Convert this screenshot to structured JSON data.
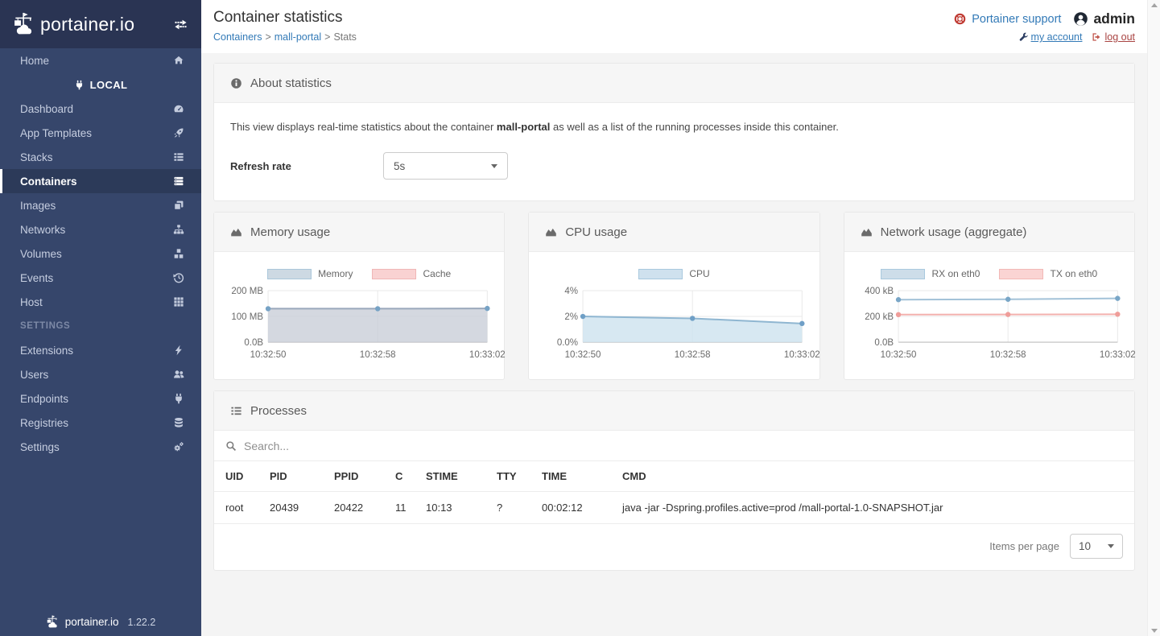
{
  "colors": {
    "sidebar_bg": "#36466b",
    "sidebar_header_bg": "#2a3453",
    "active_item_bg": "#2c3a59",
    "link_blue": "#337ab7",
    "danger_red": "#a94442",
    "page_bg": "#f4f4f4",
    "widget_header_bg": "#f6f6f6"
  },
  "sidebar": {
    "logo_text": "portainer.io",
    "home_label": "Home",
    "local_label": "LOCAL",
    "items": [
      {
        "label": "Dashboard",
        "icon": "dashboard-icon"
      },
      {
        "label": "App Templates",
        "icon": "rocket-icon"
      },
      {
        "label": "Stacks",
        "icon": "stacks-icon"
      },
      {
        "label": "Containers",
        "icon": "containers-icon",
        "active": true
      },
      {
        "label": "Images",
        "icon": "images-icon"
      },
      {
        "label": "Networks",
        "icon": "networks-icon"
      },
      {
        "label": "Volumes",
        "icon": "volumes-icon"
      },
      {
        "label": "Events",
        "icon": "history-icon"
      },
      {
        "label": "Host",
        "icon": "host-grid-icon"
      }
    ],
    "settings_header": "SETTINGS",
    "settings_items": [
      {
        "label": "Extensions",
        "icon": "bolt-icon"
      },
      {
        "label": "Users",
        "icon": "users-icon"
      },
      {
        "label": "Endpoints",
        "icon": "plug-icon"
      },
      {
        "label": "Registries",
        "icon": "database-icon"
      },
      {
        "label": "Settings",
        "icon": "cogs-icon"
      }
    ],
    "footer_logo_text": "portainer.io",
    "version": "1.22.2"
  },
  "header": {
    "title": "Container statistics",
    "breadcrumb": [
      {
        "label": "Containers"
      },
      {
        "label": "mall-portal"
      },
      {
        "label": "Stats"
      }
    ],
    "separator": ">",
    "support_label": "Portainer support",
    "username": "admin",
    "my_account_label": "my account",
    "log_out_label": "log out"
  },
  "about": {
    "title": "About statistics",
    "description_prefix": "This view displays real-time statistics about the container ",
    "container_name": "mall-portal",
    "description_suffix": " as well as a list of the running processes inside this container.",
    "refresh_label": "Refresh rate",
    "refresh_value": "5s"
  },
  "chart_data": [
    {
      "type": "area",
      "title": "Memory usage",
      "x": [
        "10:32:50",
        "10:32:58",
        "10:33:02"
      ],
      "ylim": [
        0,
        200
      ],
      "ytick_labels": [
        "0.0B",
        "100 MB",
        "200 MB"
      ],
      "grid": true,
      "legend_position": "top",
      "series": [
        {
          "name": "Memory",
          "values": [
            130,
            130,
            131
          ],
          "unit": "MB",
          "draw": true,
          "fill": true,
          "line_color": "#9aa8bb",
          "point_color": "#76a2c5",
          "fill_color": "rgba(197,203,214,0.75)",
          "legend_fill": "#cdd9e3",
          "legend_border": "#aac7da"
        },
        {
          "name": "Cache",
          "values": [
            0,
            0,
            0
          ],
          "unit": "MB",
          "draw": false,
          "fill": true,
          "line_color": "#f0a9a9",
          "point_color": "#ee9a9a",
          "fill_color": "rgba(244,199,199,0.5)",
          "legend_fill": "#f9d2d2",
          "legend_border": "#f0b6b6"
        }
      ]
    },
    {
      "type": "area",
      "title": "CPU usage",
      "x": [
        "10:32:50",
        "10:32:58",
        "10:33:02"
      ],
      "ylim": [
        0,
        4
      ],
      "ytick_labels": [
        "0.0%",
        "2%",
        "4%"
      ],
      "grid": true,
      "legend_position": "top",
      "series": [
        {
          "name": "CPU",
          "values": [
            2.0,
            1.85,
            1.45
          ],
          "unit": "%",
          "draw": true,
          "fill": true,
          "line_color": "#8fb6d1",
          "point_color": "#6f9fc6",
          "fill_color": "rgba(205,226,239,0.8)",
          "legend_fill": "#cfe1ee",
          "legend_border": "#a9c9de"
        }
      ]
    },
    {
      "type": "line",
      "title": "Network usage (aggregate)",
      "x": [
        "10:32:50",
        "10:32:58",
        "10:33:02"
      ],
      "ylim": [
        0,
        400
      ],
      "ytick_labels": [
        "0.0B",
        "200 kB",
        "400 kB"
      ],
      "grid": true,
      "legend_position": "top",
      "series": [
        {
          "name": "RX on eth0",
          "values": [
            330,
            333,
            340
          ],
          "unit": "kB",
          "draw": true,
          "fill": false,
          "line_color": "#a3c2d8",
          "point_color": "#79a6c7",
          "legend_fill": "#cddde9",
          "legend_border": "#a9c9de"
        },
        {
          "name": "TX on eth0",
          "values": [
            214,
            215,
            217
          ],
          "unit": "kB",
          "draw": true,
          "fill": false,
          "line_color": "#f3b1ae",
          "point_color": "#ef9d99",
          "legend_fill": "#fad4d3",
          "legend_border": "#f2b8b6"
        }
      ]
    }
  ],
  "processes": {
    "title": "Processes",
    "search_placeholder": "Search...",
    "columns": [
      "UID",
      "PID",
      "PPID",
      "C",
      "STIME",
      "TTY",
      "TIME",
      "CMD"
    ],
    "rows": [
      [
        "root",
        "20439",
        "20422",
        "11",
        "10:13",
        "?",
        "00:02:12",
        "java -jar -Dspring.profiles.active=prod /mall-portal-1.0-SNAPSHOT.jar"
      ]
    ],
    "items_per_page_label": "Items per page",
    "items_per_page_value": "10"
  }
}
